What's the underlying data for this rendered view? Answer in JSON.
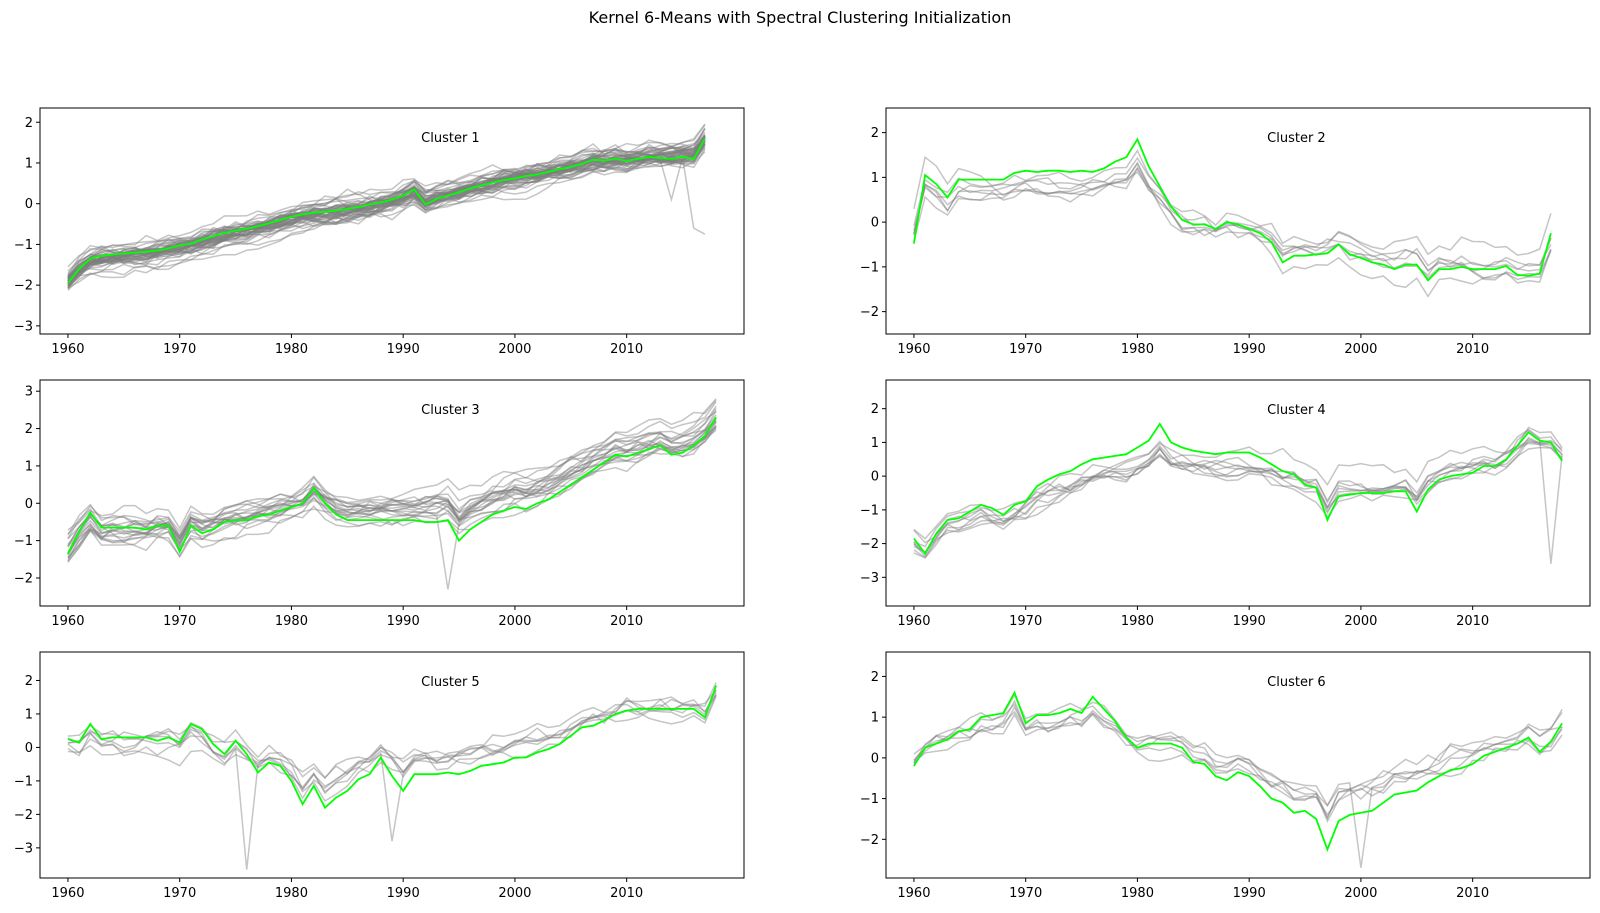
{
  "figure": {
    "title": "Kernel 6-Means with Spectral Clustering Initialization"
  },
  "chart_data": [
    {
      "type": "line",
      "title": "Cluster 1",
      "xlim": [
        1957.5,
        2020.5
      ],
      "ylim": [
        -3.2,
        2.35
      ],
      "x_ticks": [
        1960,
        1970,
        1980,
        1990,
        2000,
        2010
      ],
      "y_ticks": [
        -3,
        -2,
        -1,
        0,
        1,
        2
      ],
      "member_color": "#7f7f7f",
      "centroid_color": "#00ff00",
      "member_trend": {
        "start": -1.8,
        "end": 1.45,
        "n": 52,
        "spread": 0.6,
        "noise": 0.28,
        "seed": 11,
        "dips": [
          {
            "i": 54,
            "v": 0.1
          },
          {
            "i": 56,
            "v": -0.6
          },
          {
            "i": 57,
            "v": -0.75
          }
        ]
      },
      "centroid": [
        -1.95,
        -1.6,
        -1.35,
        -1.28,
        -1.25,
        -1.22,
        -1.2,
        -1.18,
        -1.15,
        -1.1,
        -1.02,
        -0.98,
        -0.88,
        -0.8,
        -0.72,
        -0.66,
        -0.62,
        -0.55,
        -0.48,
        -0.4,
        -0.32,
        -0.26,
        -0.22,
        -0.2,
        -0.17,
        -0.13,
        -0.08,
        -0.02,
        0.03,
        0.1,
        0.2,
        0.35,
        -0.02,
        0.12,
        0.2,
        0.28,
        0.38,
        0.45,
        0.52,
        0.58,
        0.62,
        0.68,
        0.72,
        0.78,
        0.85,
        0.9,
        0.98,
        1.08,
        1.06,
        1.1,
        1.05,
        1.1,
        1.15,
        1.12,
        1.1,
        1.15,
        1.1,
        1.6
      ]
    },
    {
      "type": "line",
      "title": "Cluster 2",
      "xlim": [
        1957.5,
        2020.5
      ],
      "ylim": [
        -2.5,
        2.55
      ],
      "x_ticks": [
        1960,
        1970,
        1980,
        1990,
        2000,
        2010
      ],
      "y_ticks": [
        -2,
        -1,
        0,
        1,
        2
      ],
      "member_color": "#7f7f7f",
      "centroid_color": "#00ff00",
      "member_trend": {
        "start": 0.6,
        "end": -0.6,
        "n": 7,
        "spread": 1.0,
        "noise": 0.32,
        "seed": 23,
        "dips": []
      },
      "centroid": [
        -0.48,
        1.05,
        0.85,
        0.55,
        0.95,
        0.95,
        0.95,
        0.95,
        0.95,
        1.1,
        1.15,
        1.12,
        1.15,
        1.15,
        1.12,
        1.15,
        1.12,
        1.2,
        1.35,
        1.45,
        1.85,
        1.25,
        0.8,
        0.35,
        0.05,
        -0.05,
        -0.05,
        -0.15,
        0.0,
        -0.05,
        -0.15,
        -0.25,
        -0.45,
        -0.9,
        -0.75,
        -0.75,
        -0.72,
        -0.7,
        -0.5,
        -0.72,
        -0.8,
        -0.9,
        -0.95,
        -1.05,
        -0.95,
        -0.95,
        -1.3,
        -1.05,
        -1.05,
        -1.0,
        -1.05,
        -1.05,
        -1.05,
        -0.98,
        -1.18,
        -1.2,
        -1.15,
        -0.25
      ]
    },
    {
      "type": "line",
      "title": "Cluster 3",
      "xlim": [
        1957.5,
        2020.5
      ],
      "ylim": [
        -2.75,
        3.3
      ],
      "x_ticks": [
        1960,
        1970,
        1980,
        1990,
        2000,
        2010
      ],
      "y_ticks": [
        -2,
        -1,
        0,
        1,
        2,
        3
      ],
      "member_color": "#7f7f7f",
      "centroid_color": "#00ff00",
      "member_trend": {
        "start": -1.0,
        "end": 2.3,
        "n": 20,
        "spread": 0.7,
        "noise": 0.35,
        "seed": 37,
        "dips": [
          {
            "i": 34,
            "v": -2.3
          }
        ]
      },
      "centroid": [
        -1.35,
        -0.75,
        -0.25,
        -0.65,
        -0.65,
        -0.65,
        -0.65,
        -0.7,
        -0.6,
        -0.6,
        -1.3,
        -0.6,
        -0.8,
        -0.7,
        -0.5,
        -0.45,
        -0.45,
        -0.35,
        -0.3,
        -0.2,
        -0.1,
        0.0,
        0.4,
        0.0,
        -0.3,
        -0.45,
        -0.45,
        -0.45,
        -0.45,
        -0.45,
        -0.45,
        -0.45,
        -0.5,
        -0.5,
        -0.45,
        -1.0,
        -0.7,
        -0.5,
        -0.3,
        -0.2,
        -0.1,
        -0.15,
        0.0,
        0.1,
        0.3,
        0.5,
        0.7,
        0.9,
        1.1,
        1.3,
        1.25,
        1.35,
        1.45,
        1.55,
        1.3,
        1.35,
        1.55,
        1.8,
        2.3
      ]
    },
    {
      "type": "line",
      "title": "Cluster 4",
      "xlim": [
        1957.5,
        2020.5
      ],
      "ylim": [
        -3.85,
        2.85
      ],
      "x_ticks": [
        1960,
        1970,
        1980,
        1990,
        2000,
        2010
      ],
      "y_ticks": [
        -3,
        -2,
        -1,
        0,
        1,
        2
      ],
      "member_color": "#7f7f7f",
      "centroid_color": "#00ff00",
      "member_trend": {
        "start": -2.0,
        "end": 1.0,
        "n": 9,
        "spread": 0.9,
        "noise": 0.4,
        "seed": 41,
        "dips": [
          {
            "i": 57,
            "v": -2.6
          }
        ]
      },
      "centroid": [
        -1.85,
        -2.3,
        -1.7,
        -1.3,
        -1.25,
        -1.05,
        -0.85,
        -0.95,
        -1.15,
        -0.85,
        -0.75,
        -0.3,
        -0.1,
        0.05,
        0.15,
        0.35,
        0.5,
        0.55,
        0.6,
        0.65,
        0.85,
        1.05,
        1.55,
        1.0,
        0.85,
        0.75,
        0.7,
        0.65,
        0.7,
        0.7,
        0.7,
        0.55,
        0.35,
        0.15,
        0.05,
        -0.25,
        -0.35,
        -1.3,
        -0.6,
        -0.55,
        -0.5,
        -0.5,
        -0.5,
        -0.45,
        -0.45,
        -1.05,
        -0.4,
        -0.1,
        0.0,
        0.05,
        0.1,
        0.3,
        0.3,
        0.5,
        0.9,
        1.3,
        1.05,
        1.0,
        0.45
      ]
    },
    {
      "type": "line",
      "title": "Cluster 5",
      "xlim": [
        1957.5,
        2020.5
      ],
      "ylim": [
        -3.9,
        2.85
      ],
      "x_ticks": [
        1960,
        1970,
        1980,
        1990,
        2000,
        2010
      ],
      "y_ticks": [
        -3,
        -2,
        -1,
        0,
        1,
        2
      ],
      "member_color": "#7f7f7f",
      "centroid_color": "#00ff00",
      "member_trend": {
        "start": 0.3,
        "end": 1.5,
        "n": 7,
        "spread": 0.8,
        "noise": 0.5,
        "seed": 53,
        "dips": [
          {
            "i": 16,
            "v": -3.65
          },
          {
            "i": 29,
            "v": -2.8
          }
        ]
      },
      "centroid": [
        0.25,
        0.15,
        0.7,
        0.25,
        0.3,
        0.3,
        0.3,
        0.3,
        0.2,
        0.3,
        0.15,
        0.7,
        0.55,
        0.1,
        -0.2,
        0.2,
        -0.2,
        -0.75,
        -0.45,
        -0.55,
        -1.0,
        -1.7,
        -1.15,
        -1.8,
        -1.5,
        -1.3,
        -0.95,
        -0.8,
        -0.3,
        -0.85,
        -1.3,
        -0.8,
        -0.8,
        -0.8,
        -0.75,
        -0.8,
        -0.7,
        -0.55,
        -0.5,
        -0.45,
        -0.3,
        -0.3,
        -0.15,
        -0.05,
        0.1,
        0.35,
        0.6,
        0.65,
        0.8,
        1.0,
        1.1,
        1.15,
        1.15,
        1.15,
        1.15,
        1.15,
        1.15,
        0.9,
        1.85
      ]
    },
    {
      "type": "line",
      "title": "Cluster 6",
      "xlim": [
        1957.5,
        2020.5
      ],
      "ylim": [
        -2.95,
        2.6
      ],
      "x_ticks": [
        1960,
        1970,
        1980,
        1990,
        2000,
        2010
      ],
      "y_ticks": [
        -2,
        -1,
        0,
        1,
        2
      ],
      "member_color": "#7f7f7f",
      "centroid_color": "#00ff00",
      "member_trend": {
        "start": 0.2,
        "end": 0.6,
        "n": 6,
        "spread": 0.6,
        "noise": 0.4,
        "seed": 61,
        "dips": [
          {
            "i": 40,
            "v": -2.7
          }
        ]
      },
      "centroid": [
        -0.2,
        0.25,
        0.35,
        0.45,
        0.65,
        0.7,
        1.0,
        1.05,
        1.1,
        1.6,
        0.85,
        1.05,
        1.05,
        1.1,
        1.2,
        1.1,
        1.5,
        1.2,
        0.9,
        0.5,
        0.25,
        0.35,
        0.35,
        0.35,
        0.25,
        -0.1,
        -0.15,
        -0.45,
        -0.55,
        -0.35,
        -0.45,
        -0.7,
        -1.0,
        -1.1,
        -1.35,
        -1.3,
        -1.5,
        -2.25,
        -1.55,
        -1.4,
        -1.35,
        -1.3,
        -1.1,
        -0.9,
        -0.85,
        -0.8,
        -0.6,
        -0.45,
        -0.3,
        -0.25,
        -0.15,
        0.05,
        0.15,
        0.25,
        0.35,
        0.5,
        0.15,
        0.4,
        0.85
      ]
    }
  ]
}
